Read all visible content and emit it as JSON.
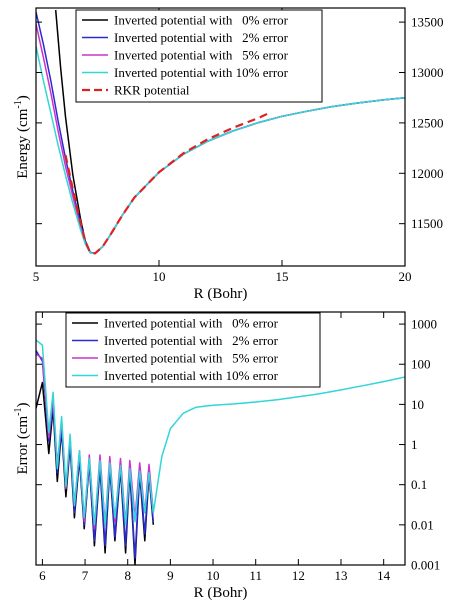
{
  "chart_data": [
    {
      "type": "line",
      "xlabel": "R (Bohr)",
      "ylabel": "Energy (cm",
      "ylabel_sup": "-1",
      "ylabel_close": ")",
      "xlim": [
        5,
        20
      ],
      "ylim": [
        11080,
        13640
      ],
      "xticks": [
        5,
        10,
        15,
        20
      ],
      "xtick_labels": [
        "5",
        "10",
        "15",
        "20"
      ],
      "yticks": [
        11500,
        12000,
        12500,
        13000,
        13500
      ],
      "ytick_labels": [
        "11500",
        "12000",
        "12500",
        "13000",
        "13500"
      ],
      "y_axis_side": "right",
      "legend": "top-left",
      "series": [
        {
          "name": "Inverted potential with   0% error",
          "color": "#000000",
          "dashed": false,
          "x": [
            5.8,
            6.0,
            6.2,
            6.5,
            6.8,
            7.0,
            7.2,
            7.4,
            7.7,
            8.0,
            8.5,
            9.0,
            10,
            11,
            12,
            13,
            14,
            15,
            16,
            17,
            18,
            19,
            20
          ],
          "y": [
            13620,
            13050,
            12560,
            11980,
            11560,
            11330,
            11215,
            11205,
            11270,
            11380,
            11580,
            11760,
            12010,
            12190,
            12320,
            12420,
            12500,
            12565,
            12615,
            12660,
            12695,
            12725,
            12750
          ]
        },
        {
          "name": "Inverted potential with   2% error",
          "color": "#2b2bd1",
          "dashed": false,
          "x": [
            5.0,
            5.3,
            5.6,
            5.9,
            6.2,
            6.5,
            6.8,
            7.0,
            7.2,
            7.4,
            7.7,
            8.0,
            8.5,
            9.0,
            10,
            11,
            12,
            13,
            14,
            15,
            16,
            17,
            18,
            19,
            20
          ],
          "y": [
            13600,
            13280,
            12920,
            12520,
            12150,
            11820,
            11510,
            11320,
            11215,
            11205,
            11270,
            11380,
            11580,
            11760,
            12010,
            12190,
            12320,
            12420,
            12500,
            12565,
            12615,
            12660,
            12695,
            12725,
            12750
          ]
        },
        {
          "name": "Inverted potential with   5% error",
          "color": "#cc33cc",
          "dashed": false,
          "x": [
            5.0,
            5.3,
            5.6,
            5.9,
            6.2,
            6.5,
            6.8,
            7.0,
            7.2,
            7.4,
            7.7,
            8.0,
            8.5,
            9.0,
            10,
            11,
            12,
            13,
            14,
            15,
            16,
            17,
            18,
            19,
            20
          ],
          "y": [
            13480,
            13150,
            12800,
            12420,
            12070,
            11770,
            11480,
            11310,
            11212,
            11205,
            11270,
            11380,
            11580,
            11760,
            12010,
            12190,
            12320,
            12420,
            12500,
            12565,
            12615,
            12660,
            12695,
            12725,
            12750
          ]
        },
        {
          "name": "Inverted potential with 10% error",
          "color": "#33d6d6",
          "dashed": false,
          "x": [
            5.0,
            5.3,
            5.6,
            5.9,
            6.2,
            6.5,
            6.8,
            7.0,
            7.2,
            7.4,
            7.7,
            8.0,
            8.5,
            9.0,
            10,
            11,
            12,
            13,
            14,
            15,
            16,
            17,
            18,
            19,
            20
          ],
          "y": [
            13260,
            12920,
            12600,
            12280,
            11980,
            11700,
            11450,
            11300,
            11210,
            11205,
            11270,
            11380,
            11580,
            11760,
            12010,
            12190,
            12320,
            12420,
            12500,
            12565,
            12615,
            12660,
            12695,
            12725,
            12750
          ]
        },
        {
          "name": "RKR potential",
          "color": "#dd2222",
          "dashed": true,
          "x": [
            6.2,
            6.5,
            6.8,
            7.0,
            7.2,
            7.4,
            7.7,
            8.0,
            8.5,
            9.0,
            10,
            11,
            12,
            13,
            14,
            14.5
          ],
          "y": [
            12180,
            11840,
            11520,
            11330,
            11215,
            11205,
            11270,
            11380,
            11580,
            11760,
            12010,
            12200,
            12340,
            12450,
            12545,
            12600
          ]
        }
      ]
    },
    {
      "type": "line",
      "xlabel": "R (Bohr)",
      "ylabel": "Error (cm",
      "ylabel_sup": "-1",
      "ylabel_close": ")",
      "xlim": [
        5.85,
        14.5
      ],
      "ylim": [
        0.001,
        2000
      ],
      "yscale": "log",
      "xticks": [
        6,
        7,
        8,
        9,
        10,
        11,
        12,
        13,
        14
      ],
      "xtick_labels": [
        "6",
        "7",
        "8",
        "9",
        "10",
        "11",
        "12",
        "13",
        "14"
      ],
      "yticks": [
        0.001,
        0.01,
        0.1,
        1,
        10,
        100,
        1000
      ],
      "ytick_labels": [
        "0.001",
        "0.01",
        "0.1",
        "1",
        "10",
        "100",
        "1000"
      ],
      "y_axis_side": "right",
      "legend": "top-left",
      "series": [
        {
          "name": "Inverted potential with   0% error",
          "color": "#000000",
          "dashed": false,
          "peaks": [
            [
              5.85,
              8
            ],
            [
              6.0,
              35
            ],
            [
              6.25,
              8
            ],
            [
              6.45,
              2.3
            ],
            [
              6.65,
              0.95
            ],
            [
              6.87,
              0.45
            ],
            [
              7.1,
              0.35
            ],
            [
              7.35,
              0.28
            ],
            [
              7.58,
              0.28
            ],
            [
              7.83,
              0.25
            ],
            [
              8.05,
              0.22
            ],
            [
              8.28,
              0.2
            ],
            [
              8.5,
              0.18
            ]
          ],
          "zeros": [
            [
              6.15,
              0.6
            ],
            [
              6.35,
              0.12
            ],
            [
              6.55,
              0.05
            ],
            [
              6.75,
              0.015
            ],
            [
              6.98,
              0.008
            ],
            [
              7.22,
              0.003
            ],
            [
              7.47,
              0.002
            ],
            [
              7.7,
              0.004
            ],
            [
              7.95,
              0.002
            ],
            [
              8.17,
              0.001
            ],
            [
              8.4,
              0.004
            ]
          ],
          "tail": [
            [
              8.6,
              0.01
            ]
          ]
        },
        {
          "name": "Inverted potential with   2% error",
          "color": "#2b2bd1",
          "dashed": false,
          "peaks": [
            [
              5.85,
              220
            ],
            [
              6.0,
              120
            ],
            [
              6.25,
              10
            ],
            [
              6.45,
              2.5
            ],
            [
              6.65,
              1.0
            ],
            [
              6.87,
              0.5
            ],
            [
              7.1,
              0.35
            ],
            [
              7.35,
              0.3
            ],
            [
              7.58,
              0.3
            ],
            [
              7.83,
              0.28
            ],
            [
              8.05,
              0.25
            ],
            [
              8.28,
              0.22
            ],
            [
              8.5,
              0.2
            ]
          ],
          "zeros": [
            [
              6.15,
              1.2
            ],
            [
              6.35,
              0.2
            ],
            [
              6.55,
              0.08
            ],
            [
              6.75,
              0.02
            ],
            [
              6.98,
              0.01
            ],
            [
              7.22,
              0.004
            ],
            [
              7.47,
              0.003
            ],
            [
              7.7,
              0.005
            ],
            [
              7.95,
              0.003
            ],
            [
              8.17,
              0.0015
            ],
            [
              8.4,
              0.006
            ]
          ],
          "tail": [
            [
              8.6,
              0.012
            ]
          ]
        },
        {
          "name": "Inverted potential with   5% error",
          "color": "#cc33cc",
          "dashed": false,
          "peaks": [
            [
              5.85,
              180
            ],
            [
              6.0,
              140
            ],
            [
              6.25,
              15
            ],
            [
              6.45,
              4
            ],
            [
              6.65,
              1.5
            ],
            [
              6.87,
              0.7
            ],
            [
              7.1,
              0.55
            ],
            [
              7.35,
              0.55
            ],
            [
              7.58,
              0.5
            ],
            [
              7.83,
              0.45
            ],
            [
              8.05,
              0.4
            ],
            [
              8.28,
              0.35
            ],
            [
              8.5,
              0.32
            ]
          ],
          "zeros": [
            [
              6.15,
              1.5
            ],
            [
              6.35,
              0.3
            ],
            [
              6.55,
              0.08
            ],
            [
              6.75,
              0.03
            ],
            [
              6.98,
              0.012
            ],
            [
              7.22,
              0.008
            ],
            [
              7.47,
              0.01
            ],
            [
              7.7,
              0.012
            ],
            [
              7.95,
              0.01
            ],
            [
              8.17,
              0.015
            ],
            [
              8.4,
              0.02
            ]
          ],
          "tail": [
            [
              8.6,
              0.02
            ]
          ]
        },
        {
          "name": "Inverted potential with 10% error",
          "color": "#33d6d6",
          "dashed": false,
          "peaks": [
            [
              5.85,
              400
            ],
            [
              6.0,
              300
            ],
            [
              6.25,
              20
            ],
            [
              6.45,
              5
            ],
            [
              6.65,
              1.8
            ],
            [
              6.87,
              0.7
            ],
            [
              7.1,
              0.45
            ],
            [
              7.35,
              0.4
            ],
            [
              7.58,
              0.35
            ],
            [
              7.83,
              0.3
            ],
            [
              8.05,
              0.25
            ],
            [
              8.28,
              0.22
            ],
            [
              8.5,
              0.2
            ]
          ],
          "zeros": [
            [
              6.15,
              2
            ],
            [
              6.35,
              0.25
            ],
            [
              6.55,
              0.09
            ],
            [
              6.75,
              0.03
            ],
            [
              6.98,
              0.015
            ],
            [
              7.22,
              0.01
            ],
            [
              7.47,
              0.01
            ],
            [
              7.7,
              0.015
            ],
            [
              7.95,
              0.01
            ],
            [
              8.17,
              0.012
            ],
            [
              8.4,
              0.02
            ]
          ],
          "tail": [
            [
              8.6,
              0.02
            ],
            [
              8.8,
              0.5
            ],
            [
              9.0,
              2.5
            ],
            [
              9.3,
              6
            ],
            [
              9.6,
              8.5
            ],
            [
              10,
              9.5
            ],
            [
              10.5,
              10.3
            ],
            [
              11,
              11.5
            ],
            [
              11.5,
              13
            ],
            [
              12,
              15.5
            ],
            [
              12.5,
              18.5
            ],
            [
              13,
              23
            ],
            [
              13.5,
              29
            ],
            [
              14,
              37
            ],
            [
              14.5,
              48
            ]
          ]
        }
      ]
    }
  ]
}
